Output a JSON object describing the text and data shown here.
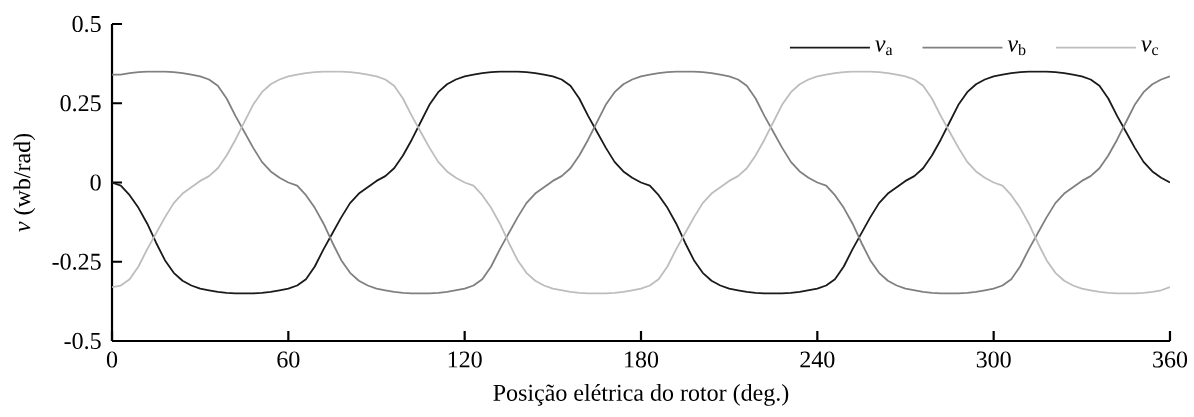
{
  "chart_data": {
    "type": "line",
    "xlabel": "Posição elétrica do rotor (deg.)",
    "ylabel": "*v* (wb/rad)",
    "xlim": [
      0,
      360
    ],
    "ylim": [
      -0.5,
      0.5
    ],
    "xticks": [
      0,
      60,
      120,
      180,
      240,
      300,
      360
    ],
    "yticks": [
      -0.5,
      -0.25,
      0,
      0.25,
      0.5
    ],
    "legend": "top right",
    "line_style": "solid",
    "x": [
      0,
      3,
      6,
      9,
      12,
      15,
      18,
      21,
      24,
      27,
      30,
      33,
      36,
      39,
      42,
      45,
      48,
      51,
      54,
      57,
      60,
      63,
      66,
      69,
      72,
      75,
      78,
      81,
      84,
      87,
      90,
      93,
      96,
      99,
      102,
      105,
      108,
      111,
      114,
      117,
      120,
      123,
      126,
      129,
      132,
      135,
      138,
      141,
      144,
      147,
      150,
      153,
      156,
      159,
      162,
      165,
      168,
      171,
      174,
      177,
      180,
      183,
      186,
      189,
      192,
      195,
      198,
      201,
      204,
      207,
      210,
      213,
      216,
      219,
      222,
      225,
      228,
      231,
      234,
      237,
      240,
      243,
      246,
      249,
      252,
      255,
      258,
      261,
      264,
      267,
      270,
      273,
      276,
      279,
      282,
      285,
      288,
      291,
      294,
      297,
      300,
      303,
      306,
      309,
      312,
      315,
      318,
      321,
      324,
      327,
      330,
      333,
      336,
      339,
      342,
      345,
      348,
      351,
      354,
      357,
      360
    ],
    "series": [
      {
        "name": "*v*$_{a}$",
        "color": "#1a1a1a",
        "values": [
          0,
          -0.01,
          -0.04,
          -0.08,
          -0.13,
          -0.19,
          -0.245,
          -0.285,
          -0.31,
          -0.325,
          -0.335,
          -0.34,
          -0.345,
          -0.348,
          -0.35,
          -0.35,
          -0.35,
          -0.348,
          -0.345,
          -0.34,
          -0.335,
          -0.325,
          -0.305,
          -0.265,
          -0.21,
          -0.16,
          -0.11,
          -0.065,
          -0.035,
          -0.015,
          0.005,
          0.02,
          0.045,
          0.085,
          0.135,
          0.19,
          0.245,
          0.285,
          0.31,
          0.325,
          0.335,
          0.34,
          0.345,
          0.348,
          0.35,
          0.35,
          0.35,
          0.348,
          0.345,
          0.34,
          0.335,
          0.325,
          0.305,
          0.265,
          0.21,
          0.16,
          0.11,
          0.065,
          0.035,
          0.015,
          0,
          -0.01,
          -0.04,
          -0.08,
          -0.13,
          -0.19,
          -0.245,
          -0.285,
          -0.31,
          -0.325,
          -0.335,
          -0.34,
          -0.345,
          -0.348,
          -0.35,
          -0.35,
          -0.35,
          -0.348,
          -0.345,
          -0.34,
          -0.335,
          -0.325,
          -0.305,
          -0.265,
          -0.21,
          -0.16,
          -0.11,
          -0.065,
          -0.035,
          -0.015,
          0.005,
          0.02,
          0.045,
          0.085,
          0.135,
          0.19,
          0.245,
          0.285,
          0.31,
          0.325,
          0.335,
          0.34,
          0.345,
          0.348,
          0.35,
          0.35,
          0.35,
          0.348,
          0.345,
          0.34,
          0.335,
          0.325,
          0.305,
          0.265,
          0.21,
          0.16,
          0.11,
          0.065,
          0.035,
          0.015,
          0
        ]
      },
      {
        "name": "*v*$_{b}$",
        "color": "#808080",
        "values": [
          0.34,
          0.34,
          0.345,
          0.348,
          0.35,
          0.35,
          0.35,
          0.348,
          0.345,
          0.34,
          0.335,
          0.325,
          0.305,
          0.265,
          0.21,
          0.16,
          0.11,
          0.065,
          0.035,
          0.015,
          0,
          -0.01,
          -0.04,
          -0.08,
          -0.13,
          -0.19,
          -0.245,
          -0.285,
          -0.31,
          -0.325,
          -0.335,
          -0.34,
          -0.345,
          -0.348,
          -0.35,
          -0.35,
          -0.35,
          -0.348,
          -0.345,
          -0.34,
          -0.335,
          -0.325,
          -0.305,
          -0.265,
          -0.21,
          -0.16,
          -0.11,
          -0.065,
          -0.035,
          -0.015,
          0.005,
          0.02,
          0.045,
          0.085,
          0.135,
          0.19,
          0.245,
          0.285,
          0.31,
          0.325,
          0.335,
          0.34,
          0.345,
          0.348,
          0.35,
          0.35,
          0.35,
          0.348,
          0.345,
          0.34,
          0.335,
          0.325,
          0.305,
          0.265,
          0.21,
          0.16,
          0.11,
          0.065,
          0.035,
          0.015,
          0,
          -0.01,
          -0.04,
          -0.08,
          -0.13,
          -0.19,
          -0.245,
          -0.285,
          -0.31,
          -0.325,
          -0.335,
          -0.34,
          -0.345,
          -0.348,
          -0.35,
          -0.35,
          -0.35,
          -0.348,
          -0.345,
          -0.34,
          -0.335,
          -0.325,
          -0.305,
          -0.265,
          -0.21,
          -0.16,
          -0.11,
          -0.065,
          -0.035,
          -0.015,
          0.005,
          0.02,
          0.045,
          0.085,
          0.135,
          0.19,
          0.245,
          0.285,
          0.31,
          0.325,
          0.335
        ]
      },
      {
        "name": "*v*$_{c}$",
        "color": "#bdbdbd",
        "values": [
          -0.33,
          -0.325,
          -0.305,
          -0.265,
          -0.21,
          -0.16,
          -0.11,
          -0.065,
          -0.035,
          -0.015,
          0.005,
          0.02,
          0.045,
          0.085,
          0.135,
          0.19,
          0.245,
          0.285,
          0.31,
          0.325,
          0.335,
          0.34,
          0.345,
          0.348,
          0.35,
          0.35,
          0.35,
          0.348,
          0.345,
          0.34,
          0.335,
          0.325,
          0.305,
          0.265,
          0.21,
          0.16,
          0.11,
          0.065,
          0.035,
          0.015,
          0,
          -0.01,
          -0.04,
          -0.08,
          -0.13,
          -0.19,
          -0.245,
          -0.285,
          -0.31,
          -0.325,
          -0.335,
          -0.34,
          -0.345,
          -0.348,
          -0.35,
          -0.35,
          -0.35,
          -0.348,
          -0.345,
          -0.34,
          -0.335,
          -0.325,
          -0.305,
          -0.265,
          -0.21,
          -0.16,
          -0.11,
          -0.065,
          -0.035,
          -0.015,
          0.005,
          0.02,
          0.045,
          0.085,
          0.135,
          0.19,
          0.245,
          0.285,
          0.31,
          0.325,
          0.335,
          0.34,
          0.345,
          0.348,
          0.35,
          0.35,
          0.35,
          0.348,
          0.345,
          0.34,
          0.335,
          0.325,
          0.305,
          0.265,
          0.21,
          0.16,
          0.11,
          0.065,
          0.035,
          0.015,
          0,
          -0.01,
          -0.04,
          -0.08,
          -0.13,
          -0.19,
          -0.245,
          -0.285,
          -0.31,
          -0.325,
          -0.335,
          -0.34,
          -0.345,
          -0.348,
          -0.35,
          -0.35,
          -0.35,
          -0.348,
          -0.345,
          -0.34,
          -0.33
        ]
      }
    ]
  }
}
